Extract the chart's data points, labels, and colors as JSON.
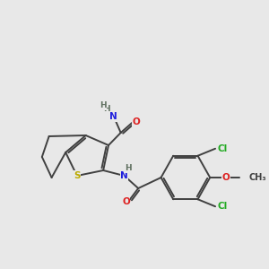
{
  "bg_color": "#e8e8e8",
  "atom_colors": {
    "C": "#404040",
    "H": "#607060",
    "N": "#2020dd",
    "O": "#dd2020",
    "S": "#bbaa00",
    "Cl": "#22aa22"
  },
  "bond_color": "#404040",
  "bond_lw": 1.4,
  "figsize": [
    3.0,
    3.0
  ],
  "dpi": 100
}
